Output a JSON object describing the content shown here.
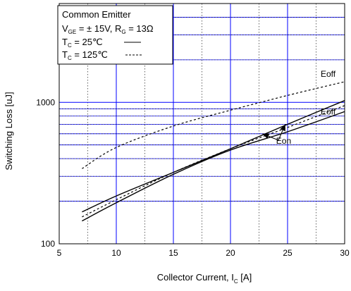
{
  "chart_data": {
    "type": "line",
    "xlabel": "Collector Current, I",
    "xlabel_sub": "C",
    "xlabel_unit": " [A]",
    "ylabel": "Switching Loss [uJ]",
    "xlim": [
      5,
      30
    ],
    "ylim": [
      100,
      5000
    ],
    "y_scale": "log",
    "grid": true,
    "x_ticks": [
      5,
      10,
      15,
      20,
      25,
      30
    ],
    "x_tick_labels": [
      "5",
      "10",
      "15",
      "20",
      "25",
      "30"
    ],
    "y_ticks": [
      100,
      1000
    ],
    "y_tick_labels": [
      "100",
      "1000"
    ],
    "legend": {
      "position": "top-left",
      "line1": "Common Emitter",
      "line2_prefix": "V",
      "line2_sub": "GE",
      "line2_mid": " = ±  15V, R",
      "line2_sub2": "G",
      "line2_suffix": " = 13Ω",
      "line3_prefix": "T",
      "line3_sub": "C",
      "line3_suffix": " =   25℃",
      "line4_prefix": "T",
      "line4_sub": "C",
      "line4_suffix": " = 125℃"
    },
    "series": [
      {
        "label": "Eoff 25℃",
        "style": "solid",
        "x": [
          7,
          10,
          15,
          20,
          25,
          30
        ],
        "y": [
          168,
          218,
          320,
          470,
          700,
          1030
        ]
      },
      {
        "label": "Eon 25℃",
        "style": "solid",
        "x": [
          7,
          10,
          15,
          20,
          25,
          30
        ],
        "y": [
          145,
          195,
          310,
          460,
          620,
          860
        ]
      },
      {
        "label": "Eoff 125℃",
        "style": "dashed",
        "x": [
          7,
          10,
          15,
          20,
          25,
          30
        ],
        "y": [
          340,
          480,
          680,
          880,
          1120,
          1400
        ]
      },
      {
        "label": "Eon 125℃",
        "style": "dashed",
        "x": [
          7,
          10,
          15,
          20,
          25,
          30
        ],
        "y": [
          155,
          205,
          320,
          470,
          665,
          950
        ]
      }
    ],
    "annotations": [
      {
        "text": "Eoff",
        "x": 27.9,
        "y": 1520
      },
      {
        "text": "Eoff",
        "x": 27.9,
        "y": 820
      },
      {
        "text": "Eon",
        "x": 24.0,
        "y": 510
      }
    ]
  }
}
